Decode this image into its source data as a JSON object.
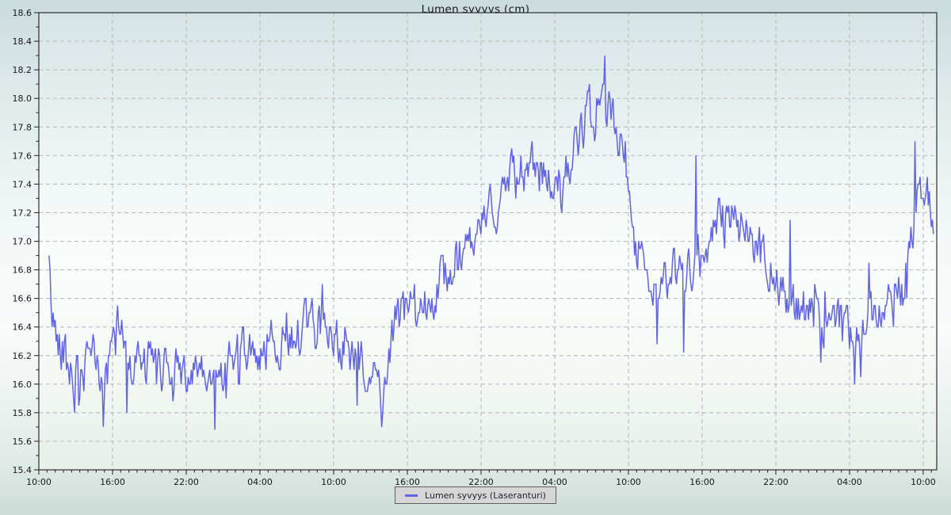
{
  "chart_data": {
    "type": "line",
    "title": "Lumen syvyys (cm)",
    "legend_position": "bottom-center",
    "grid": "dashed",
    "series": [
      {
        "name": "Lumen syvyys (Laseranturi)",
        "color": "#6265e3"
      }
    ],
    "y_axis": {
      "min": 15.4,
      "max": 18.6,
      "major_step": 0.2,
      "minor_step": 0.1,
      "tick_labels": [
        "15.4",
        "15.6",
        "15.8",
        "16.0",
        "16.2",
        "16.4",
        "16.6",
        "16.8",
        "17.0",
        "17.2",
        "17.4",
        "17.6",
        "17.8",
        "18.0",
        "18.2",
        "18.4",
        "18.6"
      ]
    },
    "x_axis": {
      "unit": "time of day",
      "major_step_hours": 6,
      "minor_divisions_per_major": 9,
      "span_hours": 73.1,
      "tick_labels": [
        "10:00",
        "16:00",
        "22:00",
        "04:00",
        "10:00",
        "16:00",
        "22:00",
        "04:00",
        "10:00",
        "16:00",
        "22:00",
        "04:00",
        "10:00"
      ]
    },
    "baseline_points": [
      [
        0.83,
        16.8
      ],
      [
        1.05,
        16.5
      ],
      [
        1.4,
        16.35
      ],
      [
        2.2,
        16.25
      ],
      [
        2.9,
        16.02
      ],
      [
        3.3,
        15.98
      ],
      [
        3.8,
        16.1
      ],
      [
        4.5,
        16.22
      ],
      [
        4.9,
        16.1
      ],
      [
        5.3,
        15.98
      ],
      [
        5.8,
        16.12
      ],
      [
        6.2,
        16.35
      ],
      [
        6.7,
        16.42
      ],
      [
        7.0,
        16.3
      ],
      [
        7.4,
        16.18
      ],
      [
        8.2,
        16.15
      ],
      [
        9.2,
        16.15
      ],
      [
        10.2,
        16.15
      ],
      [
        11.2,
        16.1
      ],
      [
        12.2,
        16.05
      ],
      [
        13.2,
        16.05
      ],
      [
        14.1,
        16.0
      ],
      [
        14.7,
        16.05
      ],
      [
        15.4,
        16.15
      ],
      [
        16.6,
        16.2
      ],
      [
        18.0,
        16.25
      ],
      [
        19.5,
        16.3
      ],
      [
        21.0,
        16.35
      ],
      [
        22.2,
        16.4
      ],
      [
        23.2,
        16.42
      ],
      [
        24.2,
        16.35
      ],
      [
        25.0,
        16.25
      ],
      [
        25.8,
        16.1
      ],
      [
        26.6,
        16.05
      ],
      [
        27.4,
        16.0
      ],
      [
        28.0,
        15.95
      ],
      [
        28.45,
        16.12
      ],
      [
        29.0,
        16.42
      ],
      [
        29.7,
        16.5
      ],
      [
        30.6,
        16.55
      ],
      [
        31.6,
        16.6
      ],
      [
        32.4,
        16.7
      ],
      [
        33.3,
        16.8
      ],
      [
        34.3,
        16.9
      ],
      [
        35.3,
        16.95
      ],
      [
        36.3,
        17.1
      ],
      [
        37.3,
        17.3
      ],
      [
        38.3,
        17.45
      ],
      [
        39.2,
        17.5
      ],
      [
        40.2,
        17.5
      ],
      [
        41.2,
        17.48
      ],
      [
        41.9,
        17.35
      ],
      [
        42.4,
        17.4
      ],
      [
        43.3,
        17.55
      ],
      [
        44.1,
        17.75
      ],
      [
        44.9,
        17.9
      ],
      [
        45.6,
        17.97
      ],
      [
        46.2,
        17.95
      ],
      [
        46.8,
        17.85
      ],
      [
        47.4,
        17.72
      ],
      [
        48.0,
        17.45
      ],
      [
        48.5,
        17.05
      ],
      [
        49.1,
        16.85
      ],
      [
        49.9,
        16.72
      ],
      [
        50.7,
        16.68
      ],
      [
        51.7,
        16.72
      ],
      [
        52.6,
        16.78
      ],
      [
        53.4,
        16.9
      ],
      [
        54.3,
        17.0
      ],
      [
        55.1,
        17.1
      ],
      [
        56.1,
        17.15
      ],
      [
        57.1,
        17.1
      ],
      [
        58.1,
        17.05
      ],
      [
        58.9,
        16.9
      ],
      [
        59.6,
        16.8
      ],
      [
        60.3,
        16.7
      ],
      [
        61.1,
        16.6
      ],
      [
        62.1,
        16.55
      ],
      [
        63.1,
        16.5
      ],
      [
        64.1,
        16.45
      ],
      [
        65.1,
        16.45
      ],
      [
        65.8,
        16.4
      ],
      [
        66.6,
        16.4
      ],
      [
        67.6,
        16.45
      ],
      [
        68.6,
        16.5
      ],
      [
        69.6,
        16.55
      ],
      [
        70.3,
        16.7
      ],
      [
        70.9,
        16.9
      ],
      [
        71.35,
        17.2
      ],
      [
        71.7,
        17.4
      ],
      [
        72.05,
        17.45
      ],
      [
        72.45,
        17.3
      ],
      [
        72.9,
        17.05
      ]
    ],
    "extreme_spikes": [
      [
        0.85,
        16.9
      ],
      [
        2.95,
        15.8
      ],
      [
        5.25,
        15.7
      ],
      [
        7.2,
        15.8
      ],
      [
        10.9,
        15.88
      ],
      [
        14.3,
        15.68
      ],
      [
        23.05,
        16.7
      ],
      [
        25.9,
        15.85
      ],
      [
        27.9,
        15.7
      ],
      [
        46.05,
        18.3
      ],
      [
        50.3,
        16.28
      ],
      [
        52.5,
        16.22
      ],
      [
        53.5,
        17.6
      ],
      [
        61.2,
        17.15
      ],
      [
        63.7,
        16.15
      ],
      [
        66.4,
        16.0
      ],
      [
        66.9,
        16.05
      ],
      [
        67.6,
        16.85
      ],
      [
        71.35,
        17.7
      ]
    ],
    "noise": {
      "jitter": 0.14,
      "quantize": 0.05,
      "seed": 42,
      "samples_per_hour": 12,
      "t_start": 0.83,
      "t_end": 72.9
    }
  },
  "colors": {
    "series": "#6265e3",
    "grid": "#bdbfbf",
    "axis": "#2e2e2e",
    "tick_text": "#14181d",
    "legend_bg": "#d6d6d6"
  },
  "layout_note_visible_only": "time-series chart, dashed grid, legend box bottom center"
}
